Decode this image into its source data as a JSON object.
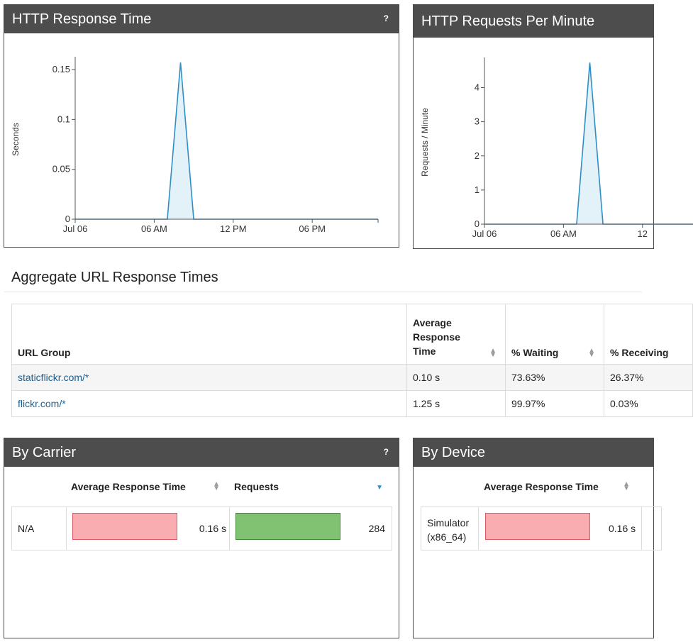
{
  "panels": {
    "response_time": {
      "title": "HTTP Response Time",
      "help": "?"
    },
    "requests_per_minute": {
      "title": "HTTP Requests Per Minute"
    },
    "by_carrier": {
      "title": "By Carrier",
      "help": "?"
    },
    "by_device": {
      "title": "By Device"
    }
  },
  "chart_data": [
    {
      "type": "area",
      "title": "HTTP Response Time",
      "ylabel": "Seconds",
      "xlabel": "",
      "x_ticks": [
        "Jul 06",
        "06 AM",
        "12 PM",
        "06 PM"
      ],
      "y_ticks": [
        "0",
        "0.05",
        "0.1",
        "0.15"
      ],
      "ylim": [
        0,
        0.16
      ],
      "xlim_hours": [
        0,
        23
      ],
      "x_hours": [
        0,
        7,
        8,
        9,
        23
      ],
      "values": [
        0,
        0,
        0.157,
        0,
        0
      ],
      "color": "#2f8fc4",
      "fill": "#e3f1f9"
    },
    {
      "type": "area",
      "title": "HTTP Requests Per Minute",
      "ylabel": "Requests / Minute",
      "xlabel": "",
      "x_ticks": [
        "Jul 06",
        "06 AM",
        "12"
      ],
      "y_ticks": [
        "0",
        "1",
        "2",
        "3",
        "4"
      ],
      "ylim": [
        0,
        4.8
      ],
      "xlim_hours": [
        0,
        23
      ],
      "x_hours": [
        0,
        7,
        8,
        9,
        23
      ],
      "values": [
        0,
        0,
        4.73,
        0,
        0
      ],
      "color": "#2f8fc4",
      "fill": "#e3f1f9"
    }
  ],
  "aggregate": {
    "title": "Aggregate URL Response Times",
    "columns": [
      "URL Group",
      "Average Response Time",
      "% Waiting",
      "% Receiving"
    ],
    "rows": [
      {
        "url": "staticflickr.com/*",
        "avg": "0.10 s",
        "waiting": "73.63%",
        "receiving": "26.37%"
      },
      {
        "url": "flickr.com/*",
        "avg": "1.25 s",
        "waiting": "99.97%",
        "receiving": "0.03%"
      }
    ]
  },
  "by_carrier": {
    "columns": [
      "Average Response Time",
      "Requests"
    ],
    "rows": [
      {
        "name": "N/A",
        "avg_time": "0.16 s",
        "avg_time_fraction": 1.0,
        "requests": "284",
        "requests_fraction": 1.0
      }
    ]
  },
  "by_device": {
    "columns": [
      "Average Response Time"
    ],
    "rows": [
      {
        "name": "Simulator (x86_64)",
        "avg_time": "0.16 s",
        "avg_time_fraction": 1.0
      }
    ]
  },
  "icons": {
    "sort": "sort-icon",
    "sort_desc": "sort-desc-icon",
    "help": "help-icon"
  },
  "colors": {
    "header_bg": "#4d4d4d",
    "line": "#2f8fc4",
    "bar_red": "#f9adb0",
    "bar_green": "#80c172",
    "link": "#1d5f8f"
  }
}
